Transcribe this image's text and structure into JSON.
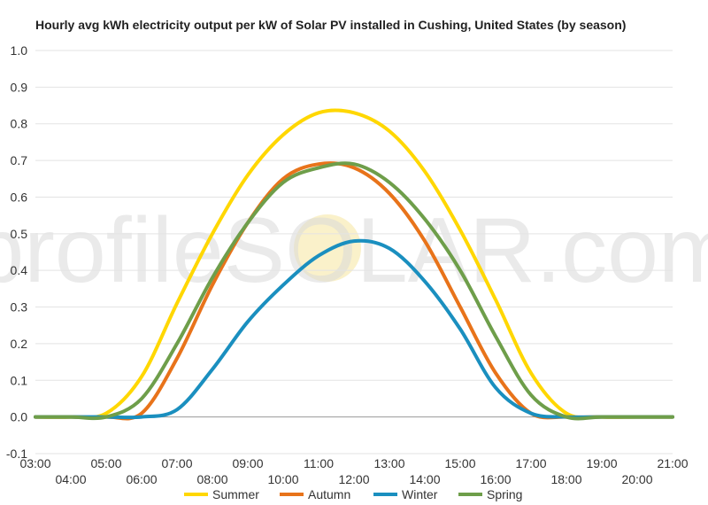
{
  "watermark": {
    "text": "profileSOLAR.com",
    "sun_color": "#f5e08a"
  },
  "chart_data": {
    "type": "line",
    "title": "Hourly avg kWh electricity output per kW of Solar PV installed in Cushing, United States (by season)",
    "xlabel": "",
    "ylabel": "",
    "ylim": [
      -0.1,
      1.0
    ],
    "yticks": [
      -0.1,
      0.0,
      0.1,
      0.2,
      0.3,
      0.4,
      0.5,
      0.6,
      0.7,
      0.8,
      0.9,
      1.0
    ],
    "ytick_labels": [
      "-0.1",
      "0.0",
      "0.1",
      "0.2",
      "0.3",
      "0.4",
      "0.5",
      "0.6",
      "0.7",
      "0.8",
      "0.9",
      "1.0"
    ],
    "xlim": [
      3,
      21
    ],
    "xticks_upper": [
      "03:00",
      "05:00",
      "07:00",
      "09:00",
      "11:00",
      "13:00",
      "15:00",
      "17:00",
      "19:00",
      "21:00"
    ],
    "xticks_lower": [
      "04:00",
      "06:00",
      "08:00",
      "10:00",
      "12:00",
      "14:00",
      "16:00",
      "18:00",
      "20:00"
    ],
    "x": [
      3,
      4,
      5,
      6,
      7,
      8,
      9,
      10,
      11,
      12,
      13,
      14,
      15,
      16,
      17,
      18,
      19,
      20,
      21
    ],
    "series": [
      {
        "name": "Summer",
        "color": "#FFD700",
        "values": [
          0,
          0,
          0.01,
          0.11,
          0.31,
          0.5,
          0.66,
          0.77,
          0.83,
          0.83,
          0.78,
          0.67,
          0.51,
          0.32,
          0.12,
          0.01,
          0,
          0,
          0
        ]
      },
      {
        "name": "Autumn",
        "color": "#E8731A",
        "values": [
          0,
          0,
          0,
          0.01,
          0.16,
          0.36,
          0.53,
          0.65,
          0.69,
          0.68,
          0.61,
          0.48,
          0.3,
          0.12,
          0.01,
          0,
          0,
          0,
          0
        ]
      },
      {
        "name": "Winter",
        "color": "#1A8FBF",
        "values": [
          0,
          0,
          0,
          0,
          0.02,
          0.13,
          0.26,
          0.36,
          0.44,
          0.48,
          0.46,
          0.37,
          0.24,
          0.08,
          0.01,
          0,
          0,
          0,
          0
        ]
      },
      {
        "name": "Spring",
        "color": "#6E9E4A",
        "values": [
          0,
          0,
          0,
          0.05,
          0.2,
          0.38,
          0.53,
          0.64,
          0.68,
          0.69,
          0.64,
          0.54,
          0.4,
          0.22,
          0.06,
          0,
          0,
          0,
          0
        ]
      }
    ],
    "legend": {
      "placement": "bottom",
      "entries": [
        "Summer",
        "Autumn",
        "Winter",
        "Spring"
      ]
    },
    "grid": true
  }
}
